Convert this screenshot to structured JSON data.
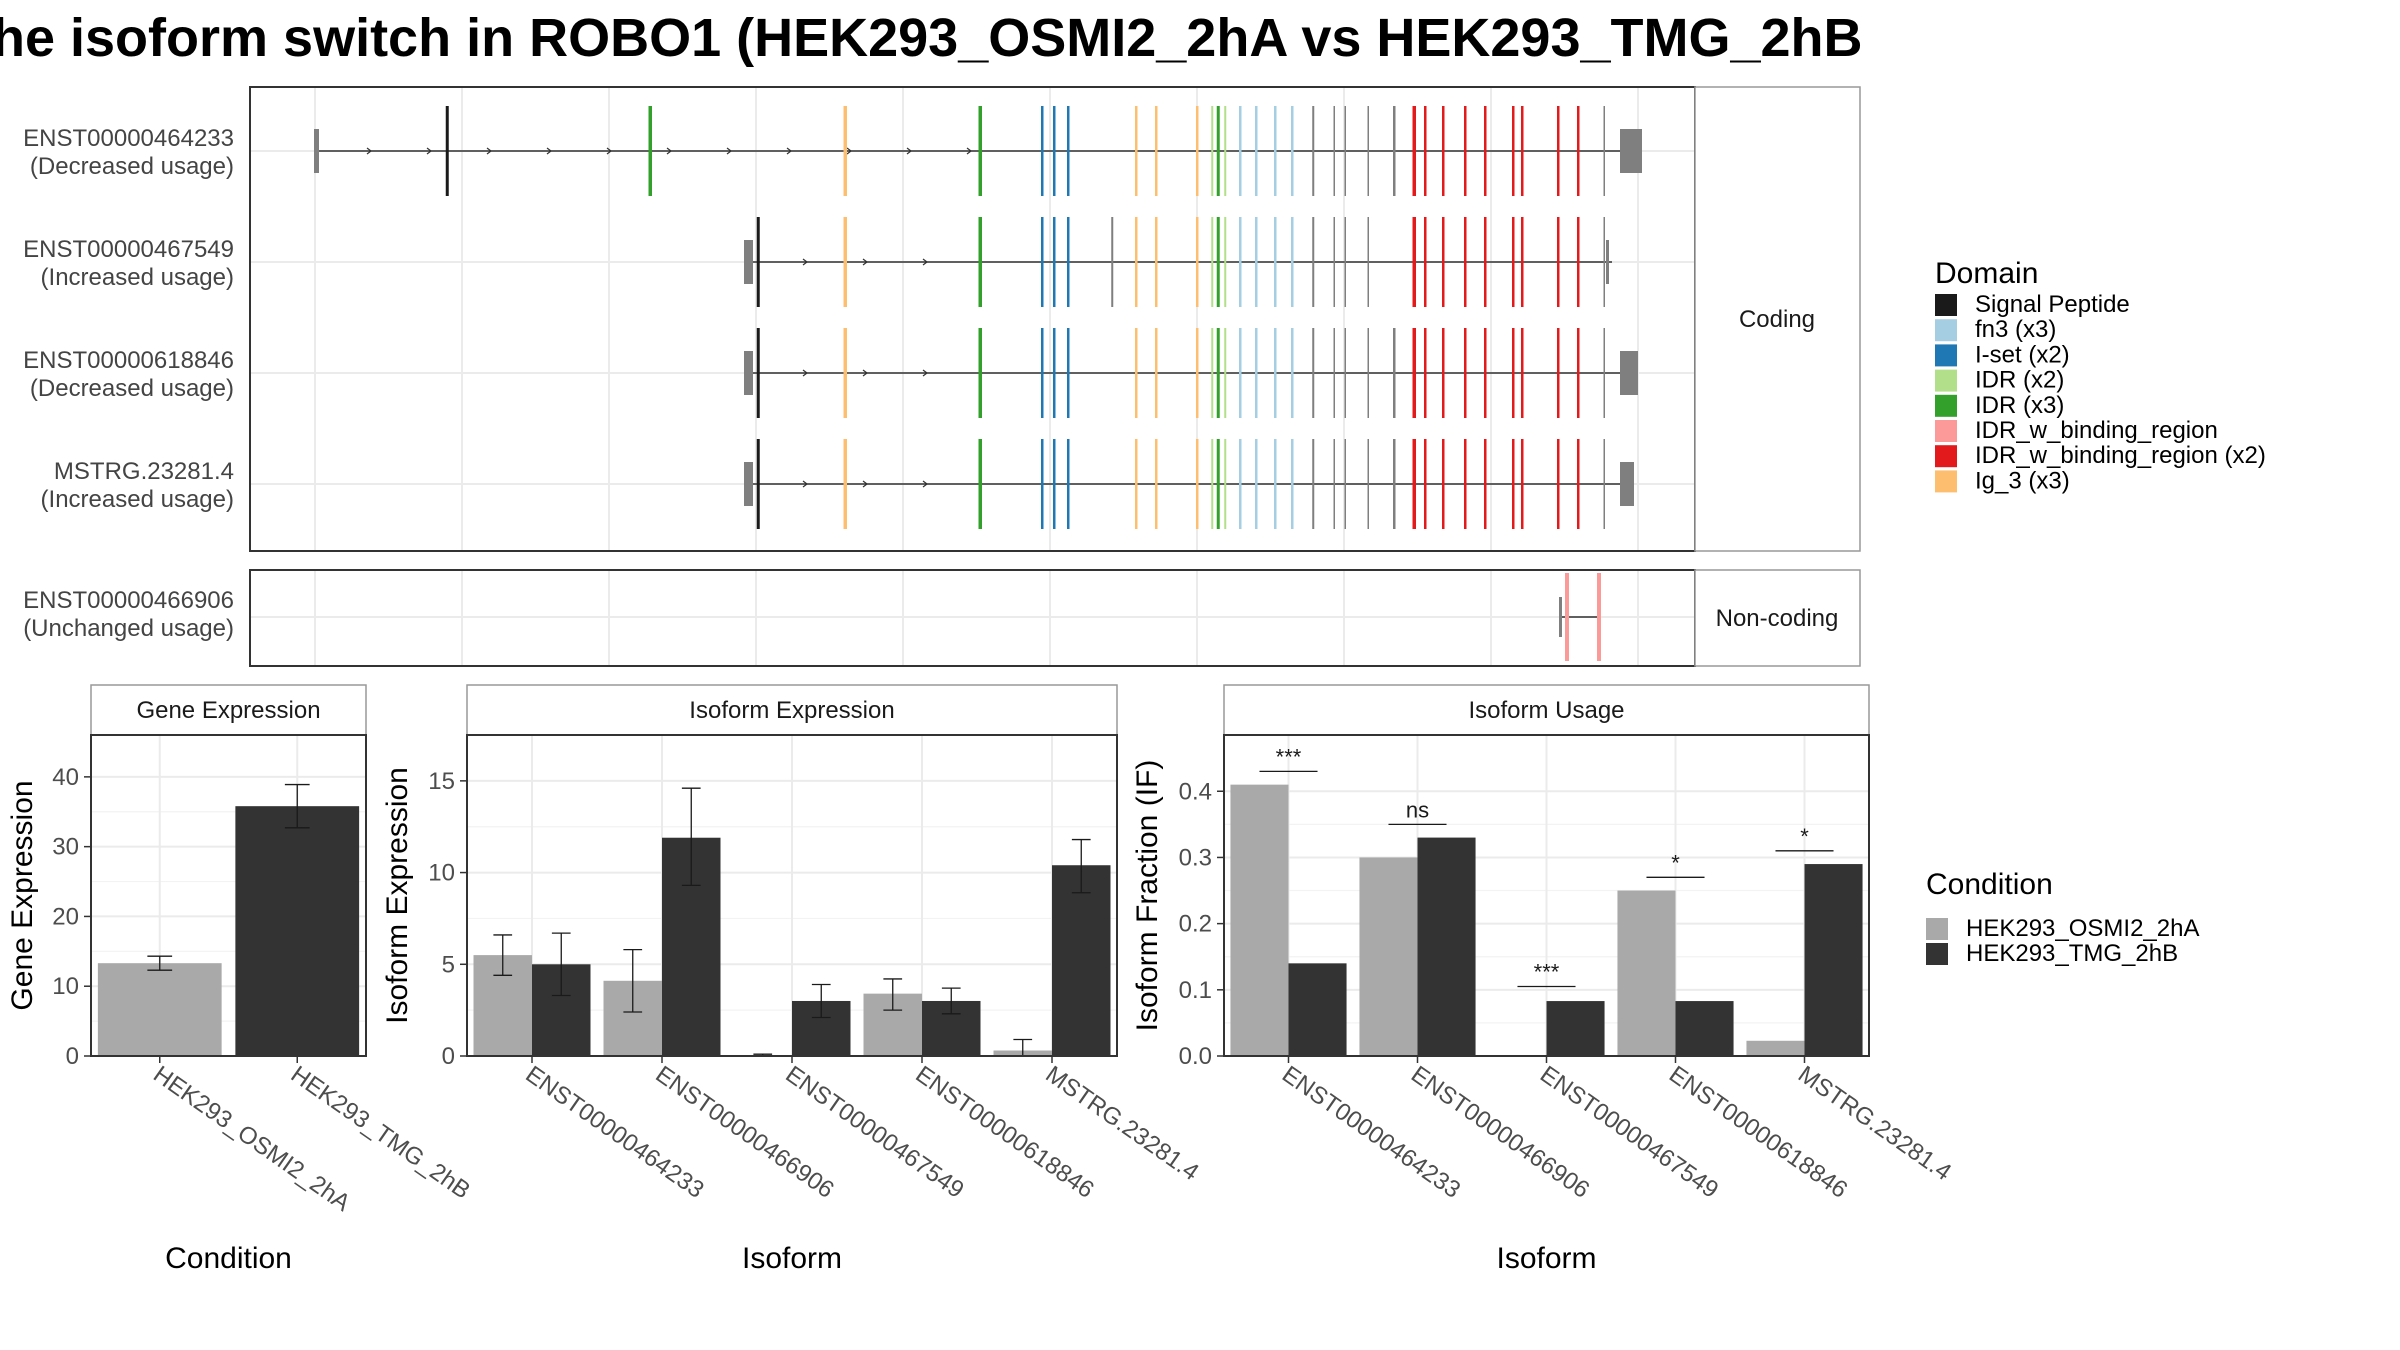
{
  "title": "he isoform switch in ROBO1 (HEK293_OSMI2_2hA vs HEK293_TMG_2hB",
  "transcripts": {
    "coding": [
      {
        "id": "ENST00000464233",
        "usage": "(Decreased usage)"
      },
      {
        "id": "ENST00000467549",
        "usage": "(Increased usage)"
      },
      {
        "id": "ENST00000618846",
        "usage": "(Decreased usage)"
      },
      {
        "id": "MSTRG.23281.4",
        "usage": "(Increased usage)"
      }
    ],
    "noncoding": [
      {
        "id": "ENST00000466906",
        "usage": "(Unchanged usage)"
      }
    ],
    "strip_coding": "Coding",
    "strip_noncoding": "Non-coding"
  },
  "domain_legend": {
    "title": "Domain",
    "items": [
      {
        "label": "Signal Peptide",
        "color": "#1a1a1a"
      },
      {
        "label": "fn3 (x3)",
        "color": "#a6cee3"
      },
      {
        "label": "I-set (x2)",
        "color": "#1f78b4"
      },
      {
        "label": "IDR (x2)",
        "color": "#b2df8a"
      },
      {
        "label": "IDR (x3)",
        "color": "#33a02c"
      },
      {
        "label": "IDR_w_binding_region",
        "color": "#fb9a99"
      },
      {
        "label": "IDR_w_binding_region (x2)",
        "color": "#e31a1c"
      },
      {
        "label": "Ig_3 (x3)",
        "color": "#fdbf6f"
      }
    ]
  },
  "condition_legend": {
    "title": "Condition",
    "items": [
      {
        "label": "HEK293_OSMI2_2hA",
        "color": "#a9a9a9"
      },
      {
        "label": "HEK293_TMG_2hB",
        "color": "#333333"
      }
    ]
  },
  "chart_data": [
    {
      "type": "bar",
      "panel": "Gene Expression",
      "categories": [
        "HEK293_OSMI2_2hA",
        "HEK293_TMG_2hB"
      ],
      "values": [
        13.3,
        35.8
      ],
      "errors": [
        [
          12.3,
          14.3
        ],
        [
          32.7,
          38.9
        ]
      ],
      "colors": [
        "#a9a9a9",
        "#333333"
      ],
      "ylabel": "Gene Expression",
      "xlabel": "Condition",
      "ylim": [
        0,
        46
      ],
      "yticks": [
        0,
        10,
        20,
        30,
        40
      ]
    },
    {
      "type": "bar",
      "panel": "Isoform Expression",
      "categories": [
        "ENST00000464233",
        "ENST00000466906",
        "ENST00000467549",
        "ENST00000618846",
        "MSTRG.23281.4"
      ],
      "series": [
        {
          "name": "HEK293_OSMI2_2hA",
          "values": [
            5.5,
            4.1,
            0.05,
            3.4,
            0.3
          ],
          "errors": [
            [
              4.4,
              6.6
            ],
            [
              2.4,
              5.8
            ],
            [
              0.0,
              0.1
            ],
            [
              2.5,
              4.2
            ],
            [
              0.0,
              0.9
            ]
          ]
        },
        {
          "name": "HEK293_TMG_2hB",
          "values": [
            5.0,
            11.9,
            3.0,
            3.0,
            10.4
          ],
          "errors": [
            [
              3.3,
              6.7
            ],
            [
              9.3,
              14.6
            ],
            [
              2.1,
              3.9
            ],
            [
              2.3,
              3.7
            ],
            [
              8.9,
              11.8
            ]
          ]
        }
      ],
      "ylabel": "Isoform Expression",
      "xlabel": "Isoform",
      "ylim": [
        0,
        17.5
      ],
      "yticks": [
        0,
        5,
        10,
        15
      ]
    },
    {
      "type": "bar",
      "panel": "Isoform Usage",
      "categories": [
        "ENST00000464233",
        "ENST00000466906",
        "ENST00000467549",
        "ENST00000618846",
        "MSTRG.23281.4"
      ],
      "series": [
        {
          "name": "HEK293_OSMI2_2hA",
          "values": [
            0.41,
            0.3,
            0.0,
            0.25,
            0.023
          ]
        },
        {
          "name": "HEK293_TMG_2hB",
          "values": [
            0.14,
            0.33,
            0.083,
            0.083,
            0.29
          ]
        }
      ],
      "significance": [
        "***",
        "ns",
        "***",
        "*",
        "*"
      ],
      "significance_y": [
        0.43,
        0.35,
        0.105,
        0.27,
        0.31
      ],
      "ylabel": "Isoform Fraction (IF)",
      "xlabel": "Isoform",
      "ylim": [
        0,
        0.485
      ],
      "yticks": [
        0.0,
        0.1,
        0.2,
        0.3,
        0.4
      ],
      "ytick_labels": [
        "0.0",
        "0.1",
        "0.2",
        "0.3",
        "0.4"
      ]
    }
  ]
}
